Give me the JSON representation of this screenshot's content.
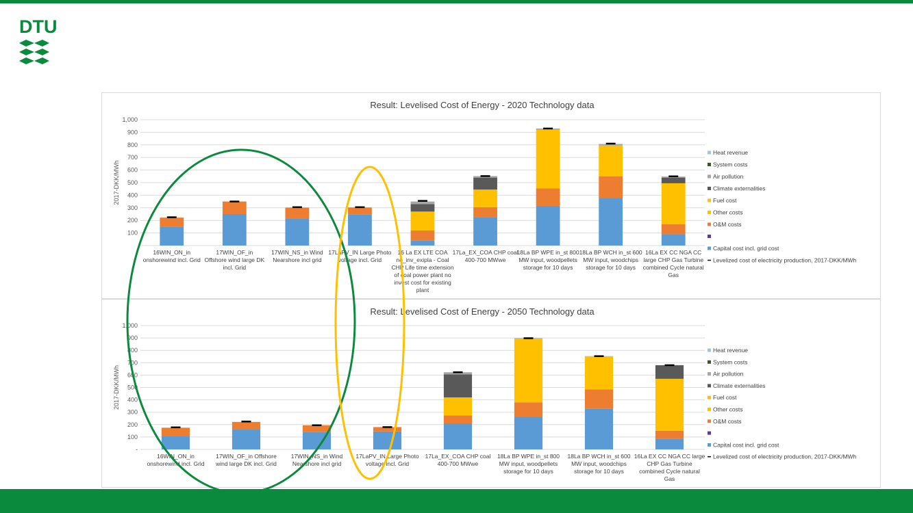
{
  "slide": {
    "logo_text": "DTU",
    "brand_green": "#0a8a3c"
  },
  "colors": {
    "Heat revenue": "#9dc3e6",
    "System costs": "#385723",
    "Air pollution": "#a6a6a6",
    "Climate externalities": "#595959",
    "Fuel cost": "#ffc000",
    "Other costs": "#ffc000",
    "O&M costs": "#ed7d31",
    "blank": "#7030a0",
    "Capital cost incl. grid cost": "#5b9bd5",
    "LCOE": "#000000",
    "green_ellipse": "#0a8a3c",
    "yellow_ellipse": "#ffc000"
  },
  "chart_data": [
    {
      "type": "bar",
      "stacked": true,
      "title": "Result: Levelised Cost of Energy - 2020 Technology data",
      "ylabel": "2017-DKK/MWh",
      "ylim": [
        0,
        1000
      ],
      "yticks": [
        "",
        "100",
        "200",
        "300",
        "400",
        "500",
        "600",
        "700",
        "800",
        "900",
        "1,000"
      ],
      "grid": true,
      "legend_position": "right",
      "categories": [
        [
          "16WIN_ON_in",
          "onshorewind incl. Grid"
        ],
        [
          "17WIN_OF_in",
          "Offshore wind large DK",
          "incl. Grid"
        ],
        [
          "17WIN_NS_in  Wind",
          "Nearshore incl grid"
        ],
        [
          "17LaPV_IN Large Photo",
          "voltage incl. Grid"
        ],
        [
          "16 La EX LTE COA",
          "no_inv_exipla  - Coal",
          "CHP Life time extension",
          "of coal power plant no",
          "invest cost for existing",
          "plant"
        ],
        [
          "17La_EX_COA CHP coal",
          "400-700 MWwe"
        ],
        [
          "18La BP WPE in_st 800",
          "MW input, woodpellets",
          "storage for 10 days"
        ],
        [
          "18La BP WCH in_st 600",
          "MW input, woodchips",
          "storage for 10 days"
        ],
        [
          "16La EX CC NGA CC",
          "large CHP Gas Turbine",
          "combined Cycle natural",
          "Gas"
        ]
      ],
      "series": [
        {
          "name": "Capital cost incl. grid cost",
          "values": [
            150,
            250,
            215,
            245,
            40,
            225,
            315,
            375,
            90
          ]
        },
        {
          "name": "O&M costs",
          "values": [
            72,
            100,
            87,
            58,
            80,
            80,
            140,
            175,
            80
          ]
        },
        {
          "name": "Other costs",
          "values": [
            0,
            0,
            0,
            0,
            150,
            140,
            465,
            245,
            325
          ]
        },
        {
          "name": "Climate externalities",
          "values": [
            0,
            0,
            0,
            0,
            60,
            95,
            0,
            0,
            45
          ]
        },
        {
          "name": "Air pollution",
          "values": [
            0,
            0,
            0,
            0,
            20,
            12,
            10,
            12,
            8
          ]
        }
      ],
      "lcoe": [
        225,
        350,
        305,
        305,
        355,
        552,
        930,
        810,
        550
      ],
      "legend": [
        "Heat revenue",
        "System costs",
        "Air pollution",
        "Climate externalities",
        "Fuel cost",
        "Other costs",
        "O&M costs",
        "",
        "Capital cost incl. grid cost",
        "Levelized cost of electricity production, 2017-DKK/MWh"
      ]
    },
    {
      "type": "bar",
      "stacked": true,
      "title": "Result: Levelised Cost of Energy - 2050 Technology data",
      "ylabel": "2017-DKK/MWh",
      "ylim": [
        0,
        1000
      ],
      "yticks": [
        "-",
        "100",
        "200",
        "300",
        "400",
        "500",
        "600",
        "700",
        "800",
        "900",
        "1,000"
      ],
      "grid": true,
      "legend_position": "right",
      "categories": [
        [
          "16WIN_ON_in",
          "onshorewind incl. Grid"
        ],
        [
          "17WIN_OF_in  Offshore",
          "wind large DK incl. Grid"
        ],
        [
          "17WIN_NS_in  Wind",
          "Nearshore incl grid"
        ],
        [
          "17LaPV_IN Large Photo",
          "voltage incl. Grid"
        ],
        [
          "17La_EX_COA CHP coal",
          "400-700 MWwe"
        ],
        [
          "18La BP WPE in_st 800",
          "MW input, woodpellets",
          "storage for 10 days"
        ],
        [
          "18La BP WCH in_st 600",
          "MW input, woodchips",
          "storage for 10 days"
        ],
        [
          "16La EX CC NGA CC large",
          "CHP Gas Turbine",
          "combined Cycle natural",
          "Gas"
        ]
      ],
      "series": [
        {
          "name": "Capital cost incl. grid cost",
          "values": [
            110,
            160,
            140,
            145,
            210,
            265,
            330,
            85
          ]
        },
        {
          "name": "O&M costs",
          "values": [
            65,
            62,
            55,
            35,
            65,
            115,
            155,
            65
          ]
        },
        {
          "name": "Other costs",
          "values": [
            0,
            0,
            0,
            0,
            145,
            515,
            265,
            420
          ]
        },
        {
          "name": "Climate externalities",
          "values": [
            0,
            0,
            0,
            0,
            185,
            0,
            0,
            110
          ]
        },
        {
          "name": "Air pollution",
          "values": [
            0,
            0,
            0,
            0,
            18,
            3,
            3,
            0
          ]
        }
      ],
      "lcoe": [
        178,
        225,
        195,
        180,
        623,
        898,
        753,
        680
      ],
      "legend": [
        "Heat revenue",
        "System costs",
        "Air pollution",
        "Climate externalities",
        "Fuel cost",
        "Other costs",
        "O&M costs",
        "",
        "Capital cost incl. grid cost",
        "Levelized cost of electricity production, 2017-DKK/MWh"
      ]
    }
  ]
}
